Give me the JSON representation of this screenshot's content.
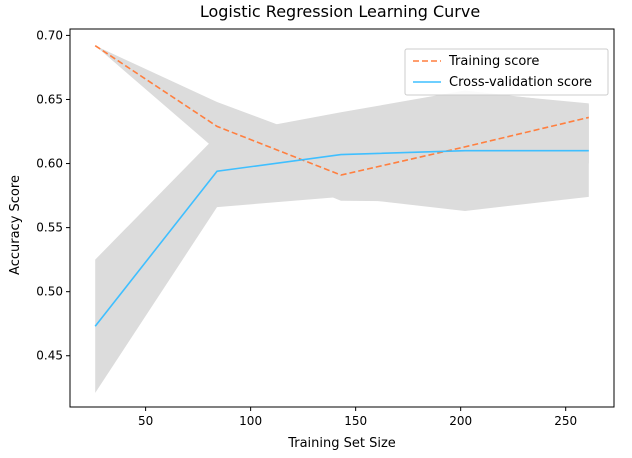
{
  "chart_data": {
    "type": "line",
    "title": "Logistic Regression Learning Curve",
    "xlabel": "Training Set Size",
    "ylabel": "Accuracy Score",
    "xlim": [
      14,
      273
    ],
    "ylim": [
      0.41,
      0.705
    ],
    "xticks": [
      50,
      100,
      150,
      200,
      250
    ],
    "yticks": [
      0.45,
      0.5,
      0.55,
      0.6,
      0.65,
      0.7
    ],
    "ytick_labels": [
      "0.45",
      "0.50",
      "0.55",
      "0.60",
      "0.65",
      "0.70"
    ],
    "x": [
      26,
      84,
      143,
      202,
      261
    ],
    "series": [
      {
        "name": "Training score",
        "values": [
          0.692,
          0.629,
          0.591,
          0.613,
          0.636
        ],
        "color": "#ff7f3f",
        "style": "dashed"
      },
      {
        "name": "Cross-validation score",
        "values": [
          0.473,
          0.594,
          0.607,
          0.61,
          0.61
        ],
        "color": "#3fbfff",
        "style": "solid"
      }
    ],
    "bands": [
      {
        "name": "Training score",
        "lower": [
          0.692,
          0.61,
          0.571,
          0.57,
          0.6
        ],
        "upper": [
          0.692,
          0.648,
          0.612,
          0.656,
          0.647
        ],
        "color": "#dcdcdc"
      },
      {
        "name": "Cross-validation score",
        "lower": [
          0.421,
          0.566,
          0.574,
          0.563,
          0.574
        ],
        "upper": [
          0.525,
          0.622,
          0.64,
          0.657,
          0.646
        ],
        "color": "#dcdcdc"
      }
    ],
    "legend_position": "top-right",
    "grid": false
  }
}
